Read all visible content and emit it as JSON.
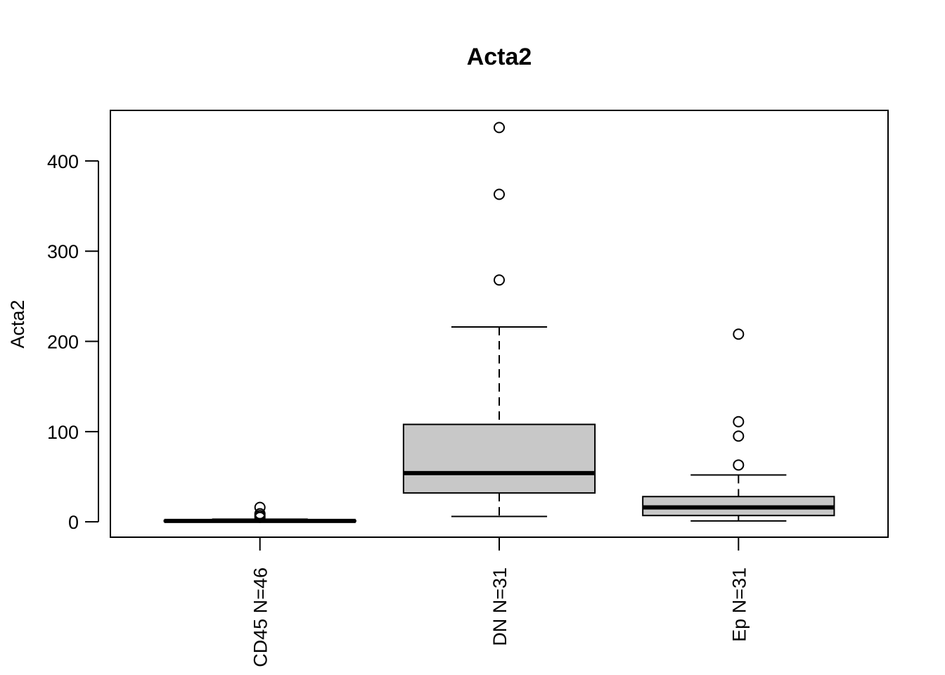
{
  "chart_data": {
    "type": "boxplot",
    "title": "Acta2",
    "xlabel": "",
    "ylabel": "Acta2",
    "ylim": [
      -17,
      456
    ],
    "yticks": [
      "0",
      "100",
      "200",
      "300",
      "400"
    ],
    "ytick_values": [
      0,
      100,
      200,
      300,
      400
    ],
    "box_fill": "#c8c8c8",
    "categories": [
      "CD45 N=46",
      "DN N=31",
      "Ep N=31"
    ],
    "boxes": [
      {
        "label": "CD45 N=46",
        "whisker_low": 0,
        "q1": 0.5,
        "median": 1,
        "q3": 1.5,
        "whisker_high": 3,
        "outliers": [
          5,
          7,
          9,
          16
        ]
      },
      {
        "label": "DN N=31",
        "whisker_low": 6,
        "q1": 32,
        "median": 54,
        "q3": 108,
        "whisker_high": 216,
        "outliers": [
          268,
          363,
          437
        ]
      },
      {
        "label": "Ep N=31",
        "whisker_low": 1,
        "q1": 7,
        "median": 16,
        "q3": 28,
        "whisker_high": 52,
        "outliers": [
          63,
          95,
          111,
          208
        ]
      }
    ]
  }
}
